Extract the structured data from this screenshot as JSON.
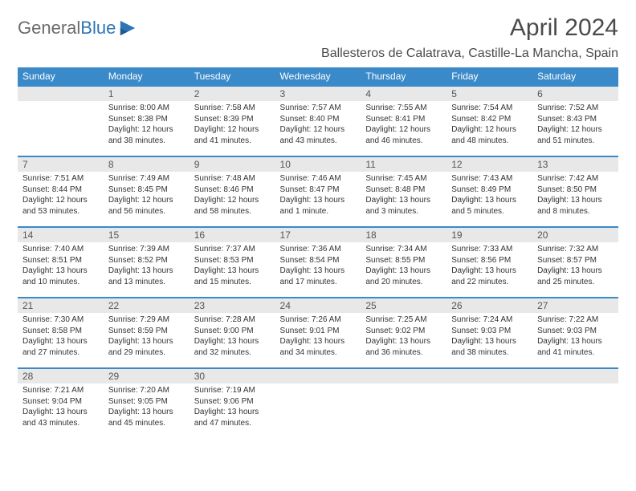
{
  "logo": {
    "gray": "General",
    "blue": "Blue"
  },
  "title": "April 2024",
  "location": "Ballesteros de Calatrava, Castille-La Mancha, Spain",
  "colors": {
    "header_bg": "#3a8ac9",
    "header_text": "#ffffff",
    "daynum_bg": "#e8e8e8",
    "border": "#3a8ac9",
    "body_text": "#333333",
    "logo_gray": "#6b6b6b",
    "logo_blue": "#2e75b6"
  },
  "weekdays": [
    "Sunday",
    "Monday",
    "Tuesday",
    "Wednesday",
    "Thursday",
    "Friday",
    "Saturday"
  ],
  "weeks": [
    [
      {
        "num": "",
        "lines": []
      },
      {
        "num": "1",
        "lines": [
          "Sunrise: 8:00 AM",
          "Sunset: 8:38 PM",
          "Daylight: 12 hours",
          "and 38 minutes."
        ]
      },
      {
        "num": "2",
        "lines": [
          "Sunrise: 7:58 AM",
          "Sunset: 8:39 PM",
          "Daylight: 12 hours",
          "and 41 minutes."
        ]
      },
      {
        "num": "3",
        "lines": [
          "Sunrise: 7:57 AM",
          "Sunset: 8:40 PM",
          "Daylight: 12 hours",
          "and 43 minutes."
        ]
      },
      {
        "num": "4",
        "lines": [
          "Sunrise: 7:55 AM",
          "Sunset: 8:41 PM",
          "Daylight: 12 hours",
          "and 46 minutes."
        ]
      },
      {
        "num": "5",
        "lines": [
          "Sunrise: 7:54 AM",
          "Sunset: 8:42 PM",
          "Daylight: 12 hours",
          "and 48 minutes."
        ]
      },
      {
        "num": "6",
        "lines": [
          "Sunrise: 7:52 AM",
          "Sunset: 8:43 PM",
          "Daylight: 12 hours",
          "and 51 minutes."
        ]
      }
    ],
    [
      {
        "num": "7",
        "lines": [
          "Sunrise: 7:51 AM",
          "Sunset: 8:44 PM",
          "Daylight: 12 hours",
          "and 53 minutes."
        ]
      },
      {
        "num": "8",
        "lines": [
          "Sunrise: 7:49 AM",
          "Sunset: 8:45 PM",
          "Daylight: 12 hours",
          "and 56 minutes."
        ]
      },
      {
        "num": "9",
        "lines": [
          "Sunrise: 7:48 AM",
          "Sunset: 8:46 PM",
          "Daylight: 12 hours",
          "and 58 minutes."
        ]
      },
      {
        "num": "10",
        "lines": [
          "Sunrise: 7:46 AM",
          "Sunset: 8:47 PM",
          "Daylight: 13 hours",
          "and 1 minute."
        ]
      },
      {
        "num": "11",
        "lines": [
          "Sunrise: 7:45 AM",
          "Sunset: 8:48 PM",
          "Daylight: 13 hours",
          "and 3 minutes."
        ]
      },
      {
        "num": "12",
        "lines": [
          "Sunrise: 7:43 AM",
          "Sunset: 8:49 PM",
          "Daylight: 13 hours",
          "and 5 minutes."
        ]
      },
      {
        "num": "13",
        "lines": [
          "Sunrise: 7:42 AM",
          "Sunset: 8:50 PM",
          "Daylight: 13 hours",
          "and 8 minutes."
        ]
      }
    ],
    [
      {
        "num": "14",
        "lines": [
          "Sunrise: 7:40 AM",
          "Sunset: 8:51 PM",
          "Daylight: 13 hours",
          "and 10 minutes."
        ]
      },
      {
        "num": "15",
        "lines": [
          "Sunrise: 7:39 AM",
          "Sunset: 8:52 PM",
          "Daylight: 13 hours",
          "and 13 minutes."
        ]
      },
      {
        "num": "16",
        "lines": [
          "Sunrise: 7:37 AM",
          "Sunset: 8:53 PM",
          "Daylight: 13 hours",
          "and 15 minutes."
        ]
      },
      {
        "num": "17",
        "lines": [
          "Sunrise: 7:36 AM",
          "Sunset: 8:54 PM",
          "Daylight: 13 hours",
          "and 17 minutes."
        ]
      },
      {
        "num": "18",
        "lines": [
          "Sunrise: 7:34 AM",
          "Sunset: 8:55 PM",
          "Daylight: 13 hours",
          "and 20 minutes."
        ]
      },
      {
        "num": "19",
        "lines": [
          "Sunrise: 7:33 AM",
          "Sunset: 8:56 PM",
          "Daylight: 13 hours",
          "and 22 minutes."
        ]
      },
      {
        "num": "20",
        "lines": [
          "Sunrise: 7:32 AM",
          "Sunset: 8:57 PM",
          "Daylight: 13 hours",
          "and 25 minutes."
        ]
      }
    ],
    [
      {
        "num": "21",
        "lines": [
          "Sunrise: 7:30 AM",
          "Sunset: 8:58 PM",
          "Daylight: 13 hours",
          "and 27 minutes."
        ]
      },
      {
        "num": "22",
        "lines": [
          "Sunrise: 7:29 AM",
          "Sunset: 8:59 PM",
          "Daylight: 13 hours",
          "and 29 minutes."
        ]
      },
      {
        "num": "23",
        "lines": [
          "Sunrise: 7:28 AM",
          "Sunset: 9:00 PM",
          "Daylight: 13 hours",
          "and 32 minutes."
        ]
      },
      {
        "num": "24",
        "lines": [
          "Sunrise: 7:26 AM",
          "Sunset: 9:01 PM",
          "Daylight: 13 hours",
          "and 34 minutes."
        ]
      },
      {
        "num": "25",
        "lines": [
          "Sunrise: 7:25 AM",
          "Sunset: 9:02 PM",
          "Daylight: 13 hours",
          "and 36 minutes."
        ]
      },
      {
        "num": "26",
        "lines": [
          "Sunrise: 7:24 AM",
          "Sunset: 9:03 PM",
          "Daylight: 13 hours",
          "and 38 minutes."
        ]
      },
      {
        "num": "27",
        "lines": [
          "Sunrise: 7:22 AM",
          "Sunset: 9:03 PM",
          "Daylight: 13 hours",
          "and 41 minutes."
        ]
      }
    ],
    [
      {
        "num": "28",
        "lines": [
          "Sunrise: 7:21 AM",
          "Sunset: 9:04 PM",
          "Daylight: 13 hours",
          "and 43 minutes."
        ]
      },
      {
        "num": "29",
        "lines": [
          "Sunrise: 7:20 AM",
          "Sunset: 9:05 PM",
          "Daylight: 13 hours",
          "and 45 minutes."
        ]
      },
      {
        "num": "30",
        "lines": [
          "Sunrise: 7:19 AM",
          "Sunset: 9:06 PM",
          "Daylight: 13 hours",
          "and 47 minutes."
        ]
      },
      {
        "num": "",
        "lines": []
      },
      {
        "num": "",
        "lines": []
      },
      {
        "num": "",
        "lines": []
      },
      {
        "num": "",
        "lines": []
      }
    ]
  ]
}
